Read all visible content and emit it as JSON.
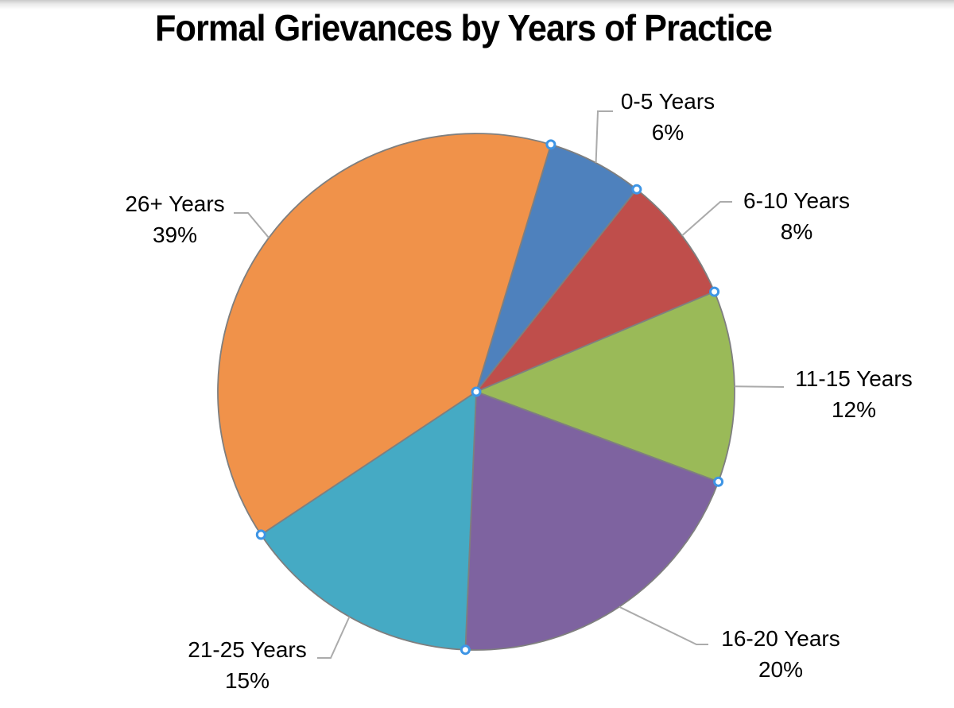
{
  "title": "Formal Grievances by Years of Practice",
  "chart_data": {
    "type": "pie",
    "title": "Formal Grievances by Years of Practice",
    "legend": "none",
    "start_angle_deg": 16.8,
    "categories": [
      "0-5 Years",
      "6-10 Years",
      "11-15 Years",
      "16-20 Years",
      "21-25 Years",
      "26+ Years"
    ],
    "values": [
      6,
      8,
      12,
      20,
      15,
      39
    ],
    "slices": [
      {
        "name": "0-5 Years",
        "pct_label": "6%",
        "value": 6,
        "color": "#4E81BD"
      },
      {
        "name": "6-10 Years",
        "pct_label": "8%",
        "value": 8,
        "color": "#BF4E4B"
      },
      {
        "name": "11-15 Years",
        "pct_label": "12%",
        "value": 12,
        "color": "#9ABA58"
      },
      {
        "name": "16-20 Years",
        "pct_label": "20%",
        "value": 20,
        "color": "#7E63A0"
      },
      {
        "name": "21-25 Years",
        "pct_label": "15%",
        "value": 15,
        "color": "#45AAC4"
      },
      {
        "name": "26+ Years",
        "pct_label": "39%",
        "value": 39,
        "color": "#F0924A"
      }
    ],
    "slice_border_color": "#7F7F7F",
    "leader_line_color": "#ABABAB",
    "selection_handle_ring_color": "#3E95E5",
    "selection_handle_fill_color": "#FFFFFF",
    "label_text_color": "#000000"
  }
}
